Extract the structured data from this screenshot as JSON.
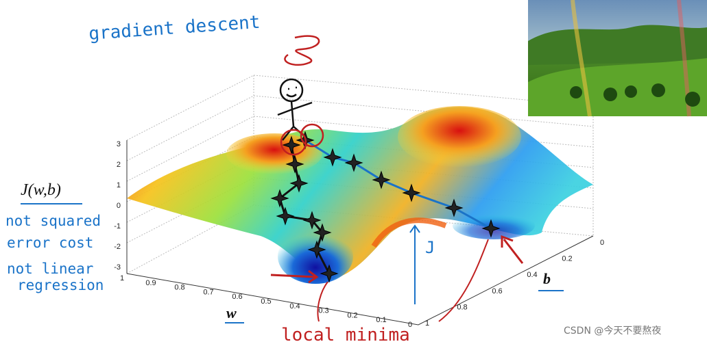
{
  "annotations": {
    "title": "gradient descent",
    "cost_label": "J(w,b)",
    "note_cost": [
      "not squared",
      "error cost"
    ],
    "note_model": [
      "not linear",
      "regression"
    ],
    "local_minima": "local minima"
  },
  "axes": {
    "w_label": "w",
    "b_label": "b",
    "j_label": "J",
    "zticks": [
      3,
      2,
      1,
      0,
      -1,
      -2,
      -3
    ],
    "wticks": [
      1,
      0.9,
      0.8,
      0.7,
      0.6,
      0.5,
      0.4,
      0.3,
      0.2,
      0.1,
      0
    ],
    "bticks": [
      0,
      0.2,
      0.4,
      0.6,
      0.8,
      1
    ]
  },
  "watermark": "CSDN @今天不要熬夜"
}
